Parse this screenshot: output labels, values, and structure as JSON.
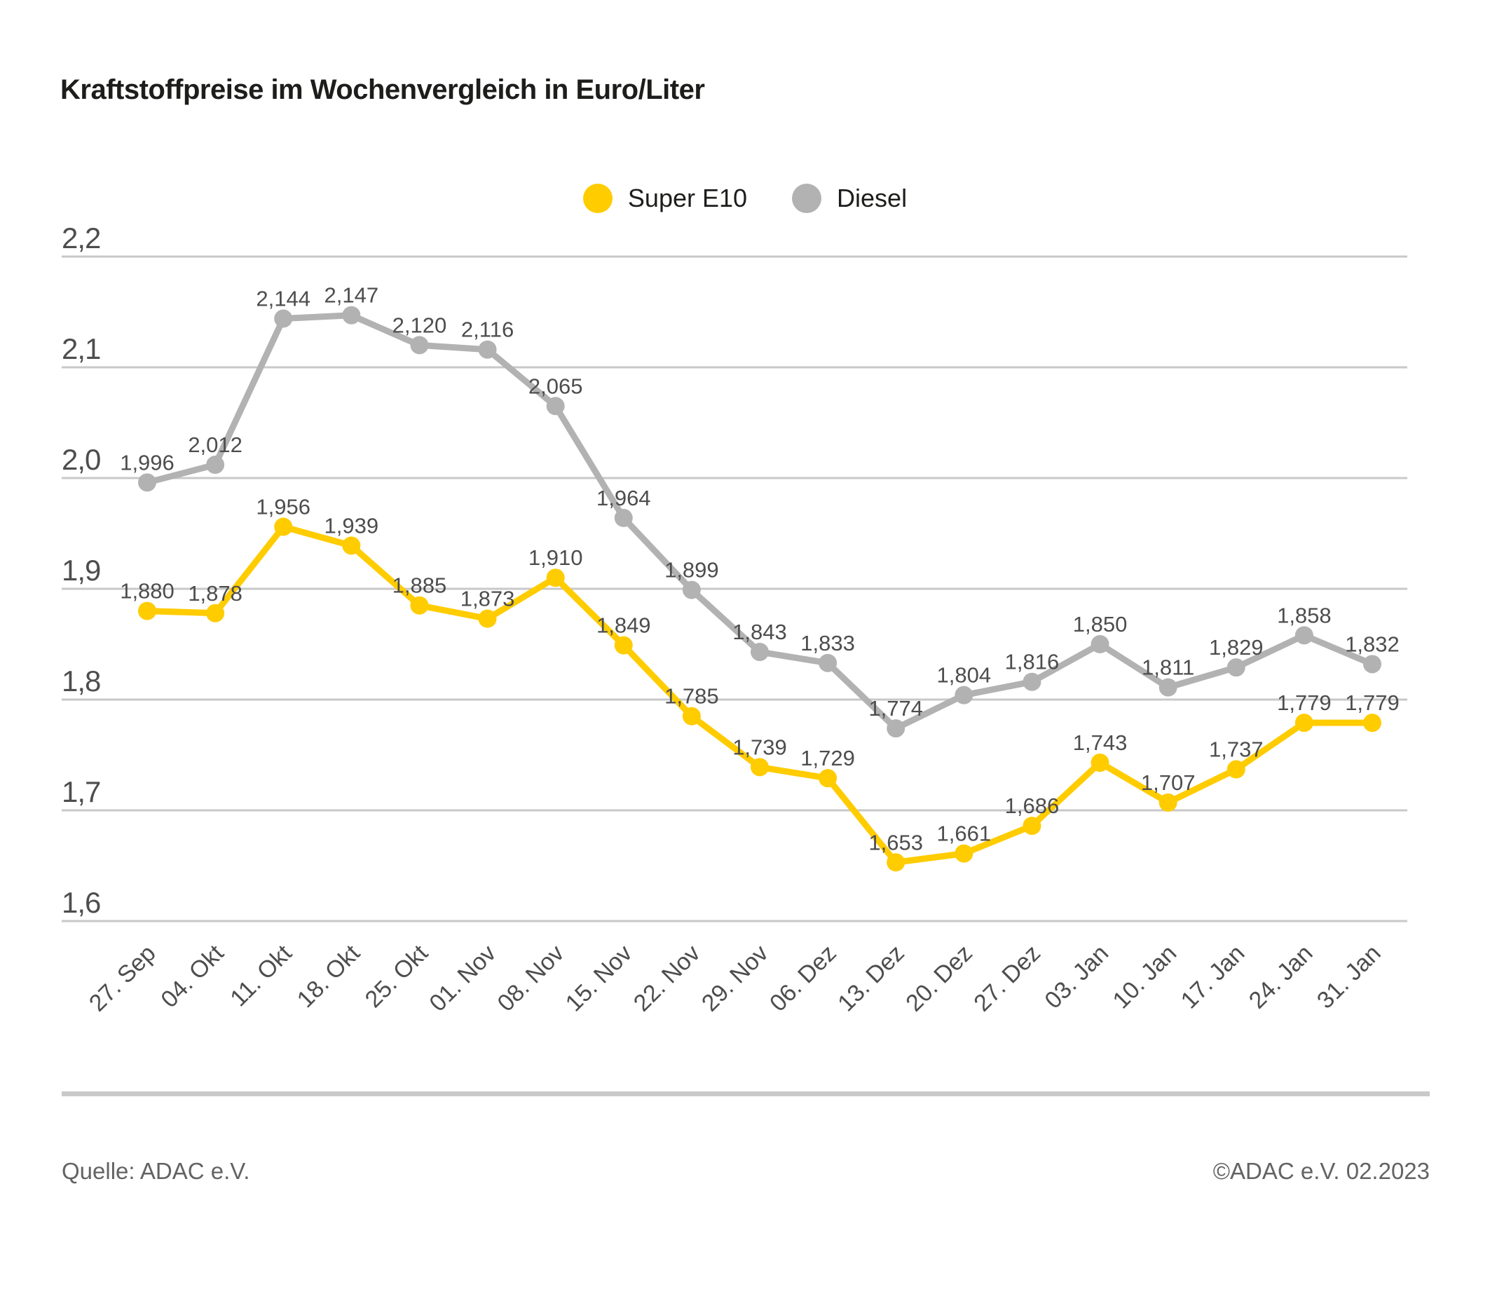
{
  "title": "Kraftstoffpreise im Wochenvergleich in Euro/Liter",
  "legend": [
    {
      "label": "Super E10",
      "color": "#ffcc00"
    },
    {
      "label": "Diesel",
      "color": "#b2b2b2"
    }
  ],
  "footer": {
    "source": "Quelle: ADAC e.V.",
    "copyright": "©ADAC e.V. 02.2023"
  },
  "colors": {
    "super_e10": "#ffcc00",
    "diesel": "#b2b2b2",
    "gridline": "#c8c8c8",
    "axis_text": "#4d4d4d",
    "value_label_text": "#4d4d4d"
  },
  "chart_data": {
    "type": "line",
    "title": "Kraftstoffpreise im Wochenvergleich in Euro/Liter",
    "xlabel": "",
    "ylabel": "Euro/Liter",
    "ylim": [
      1.6,
      2.2
    ],
    "grid": true,
    "legend_position": "top-center",
    "x_tick_rotation": -45,
    "y_ticks": [
      "2,2",
      "2,1",
      "2,0",
      "1,9",
      "1,8",
      "1,7",
      "1,6"
    ],
    "y_tick_values": [
      2.2,
      2.1,
      2.0,
      1.9,
      1.8,
      1.7,
      1.6
    ],
    "categories": [
      "27. Sep",
      "04. Okt",
      "11. Okt",
      "18. Okt",
      "25. Okt",
      "01. Nov",
      "08. Nov",
      "15. Nov",
      "22. Nov",
      "29. Nov",
      "06. Dez",
      "13. Dez",
      "20. Dez",
      "27. Dez",
      "03. Jan",
      "10. Jan",
      "17. Jan",
      "24. Jan",
      "31. Jan"
    ],
    "series": [
      {
        "name": "Diesel",
        "color": "#b2b2b2",
        "values": [
          1.996,
          2.012,
          2.144,
          2.147,
          2.12,
          2.116,
          2.065,
          1.964,
          1.899,
          1.843,
          1.833,
          1.774,
          1.804,
          1.816,
          1.85,
          1.811,
          1.829,
          1.858,
          1.832
        ],
        "labels": [
          "1,996",
          "2,012",
          "2,144",
          "2,147",
          "2,120",
          "2,116",
          "2,065",
          "1,964",
          "1,899",
          "1,843",
          "1,833",
          "1,774",
          "1,804",
          "1,816",
          "1,850",
          "1,811",
          "1,829",
          "1,858",
          "1,832"
        ]
      },
      {
        "name": "Super E10",
        "color": "#ffcc00",
        "values": [
          1.88,
          1.878,
          1.956,
          1.939,
          1.885,
          1.873,
          1.91,
          1.849,
          1.785,
          1.739,
          1.729,
          1.653,
          1.661,
          1.686,
          1.743,
          1.707,
          1.737,
          1.779,
          1.779
        ],
        "labels": [
          "1,880",
          "1,878",
          "1,956",
          "1,939",
          "1,885",
          "1,873",
          "1,910",
          "1,849",
          "1,785",
          "1,739",
          "1,729",
          "1,653",
          "1,661",
          "1,686",
          "1,743",
          "1,707",
          "1,737",
          "1,779",
          "1,779"
        ]
      }
    ]
  }
}
